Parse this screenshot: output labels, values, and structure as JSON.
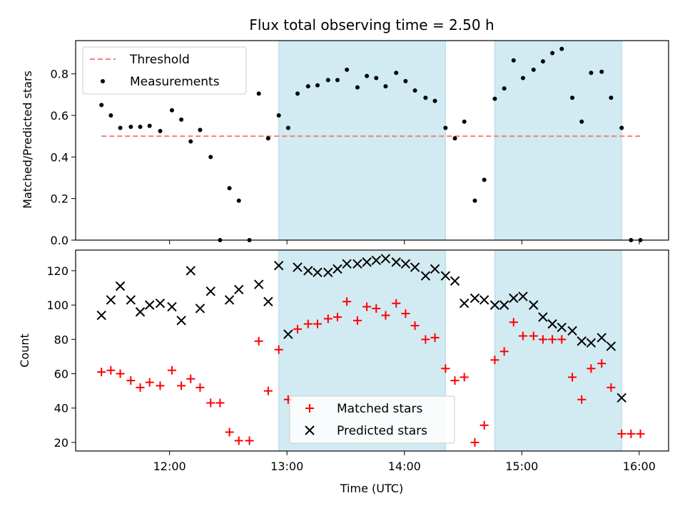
{
  "chart_data": [
    {
      "type": "scatter",
      "title": "Flux total observing time = 2.50 h",
      "xlabel": "",
      "ylabel": "Matched/Predicted stars",
      "ylim": [
        0,
        0.96
      ],
      "yticks": [
        0.0,
        0.2,
        0.4,
        0.6,
        0.8
      ],
      "ytick_labels": [
        "0.0",
        "0.2",
        "0.4",
        "0.6",
        "0.8"
      ],
      "legend_position": "top-left",
      "threshold": {
        "name": "Threshold",
        "value": 0.5,
        "x_start": 11.42,
        "x_end": 16.02,
        "color": "#f08080"
      },
      "shaded_spans": [
        [
          12.93,
          14.35
        ],
        [
          14.77,
          15.85
        ]
      ],
      "shade_color": "#add8e6",
      "series": [
        {
          "name": "Measurements",
          "color": "#000000",
          "x": [
            11.42,
            11.5,
            11.58,
            11.67,
            11.75,
            11.83,
            11.92,
            12.02,
            12.1,
            12.18,
            12.26,
            12.35,
            12.43,
            12.51,
            12.59,
            12.68,
            12.76,
            12.84,
            12.93,
            13.01,
            13.09,
            13.18,
            13.26,
            13.35,
            13.43,
            13.51,
            13.6,
            13.68,
            13.76,
            13.84,
            13.93,
            14.01,
            14.09,
            14.18,
            14.26,
            14.35,
            14.43,
            14.51,
            14.6,
            14.68,
            14.77,
            14.85,
            14.93,
            15.01,
            15.1,
            15.18,
            15.26,
            15.34,
            15.43,
            15.51,
            15.59,
            15.68,
            15.76,
            15.85,
            15.93,
            16.01
          ],
          "y": [
            0.65,
            0.6,
            0.54,
            0.545,
            0.545,
            0.55,
            0.525,
            0.625,
            0.58,
            0.475,
            0.53,
            0.4,
            0.0,
            0.25,
            0.19,
            0.0,
            0.705,
            0.49,
            0.6,
            0.54,
            0.705,
            0.74,
            0.745,
            0.77,
            0.77,
            0.82,
            0.735,
            0.79,
            0.78,
            0.74,
            0.805,
            0.765,
            0.72,
            0.685,
            0.67,
            0.54,
            0.49,
            0.57,
            0.19,
            0.29,
            0.68,
            0.73,
            0.865,
            0.78,
            0.82,
            0.86,
            0.9,
            0.92,
            0.685,
            0.57,
            0.805,
            0.81,
            0.685,
            0.54,
            0.0,
            0.0
          ]
        }
      ]
    },
    {
      "type": "scatter",
      "title": "",
      "xlabel": "Time (UTC)",
      "ylabel": "Count",
      "xlim": [
        11.2,
        16.25
      ],
      "ylim": [
        15,
        132
      ],
      "xticks": [
        12,
        13,
        14,
        15,
        16
      ],
      "xtick_labels": [
        "12:00",
        "13:00",
        "14:00",
        "15:00",
        "16:00"
      ],
      "yticks": [
        20,
        40,
        60,
        80,
        100,
        120
      ],
      "ytick_labels": [
        "20",
        "40",
        "60",
        "80",
        "100",
        "120"
      ],
      "legend_position": "bottom-center",
      "shaded_spans": [
        [
          12.93,
          14.35
        ],
        [
          14.77,
          15.85
        ]
      ],
      "shade_color": "#add8e6",
      "series": [
        {
          "name": "Matched stars",
          "marker": "plus",
          "color": "#ff0000",
          "x": [
            11.42,
            11.5,
            11.58,
            11.67,
            11.75,
            11.83,
            11.92,
            12.02,
            12.1,
            12.18,
            12.26,
            12.35,
            12.43,
            12.51,
            12.59,
            12.68,
            12.76,
            12.84,
            12.93,
            13.01,
            13.09,
            13.18,
            13.26,
            13.35,
            13.43,
            13.51,
            13.6,
            13.68,
            13.76,
            13.84,
            13.93,
            14.01,
            14.09,
            14.18,
            14.26,
            14.35,
            14.43,
            14.51,
            14.6,
            14.68,
            14.77,
            14.85,
            14.93,
            15.01,
            15.1,
            15.18,
            15.26,
            15.34,
            15.43,
            15.51,
            15.59,
            15.68,
            15.76,
            15.85,
            15.93,
            16.01
          ],
          "y": [
            61,
            62,
            60,
            56,
            52,
            55,
            53,
            62,
            53,
            57,
            52,
            43,
            43,
            26,
            21,
            21,
            79,
            50,
            74,
            45,
            86,
            89,
            89,
            92,
            93,
            102,
            91,
            99,
            98,
            94,
            101,
            95,
            88,
            80,
            81,
            63,
            56,
            58,
            20,
            30,
            68,
            73,
            90,
            82,
            82,
            80,
            80,
            80,
            58,
            45,
            63,
            66,
            52,
            25,
            25,
            25
          ]
        },
        {
          "name": "Predicted stars",
          "marker": "x",
          "color": "#000000",
          "x": [
            11.42,
            11.5,
            11.58,
            11.67,
            11.75,
            11.83,
            11.92,
            12.02,
            12.1,
            12.18,
            12.26,
            12.35,
            12.51,
            12.59,
            12.76,
            12.84,
            12.93,
            13.01,
            13.09,
            13.18,
            13.26,
            13.35,
            13.43,
            13.51,
            13.6,
            13.68,
            13.76,
            13.84,
            13.93,
            14.01,
            14.09,
            14.18,
            14.26,
            14.35,
            14.43,
            14.51,
            14.6,
            14.68,
            14.77,
            14.85,
            14.93,
            15.01,
            15.1,
            15.18,
            15.26,
            15.34,
            15.43,
            15.51,
            15.59,
            15.68,
            15.76,
            15.85
          ],
          "y": [
            94,
            103,
            111,
            103,
            96,
            100,
            101,
            99,
            91,
            120,
            98,
            108,
            103,
            109,
            112,
            102,
            123,
            83,
            122,
            120,
            119,
            119,
            121,
            124,
            124,
            125,
            126,
            127,
            125,
            124,
            122,
            117,
            121,
            117,
            114,
            101,
            104,
            103,
            100,
            100,
            104,
            105,
            100,
            93,
            89,
            87,
            85,
            79,
            78,
            81,
            76,
            46
          ]
        }
      ]
    }
  ]
}
